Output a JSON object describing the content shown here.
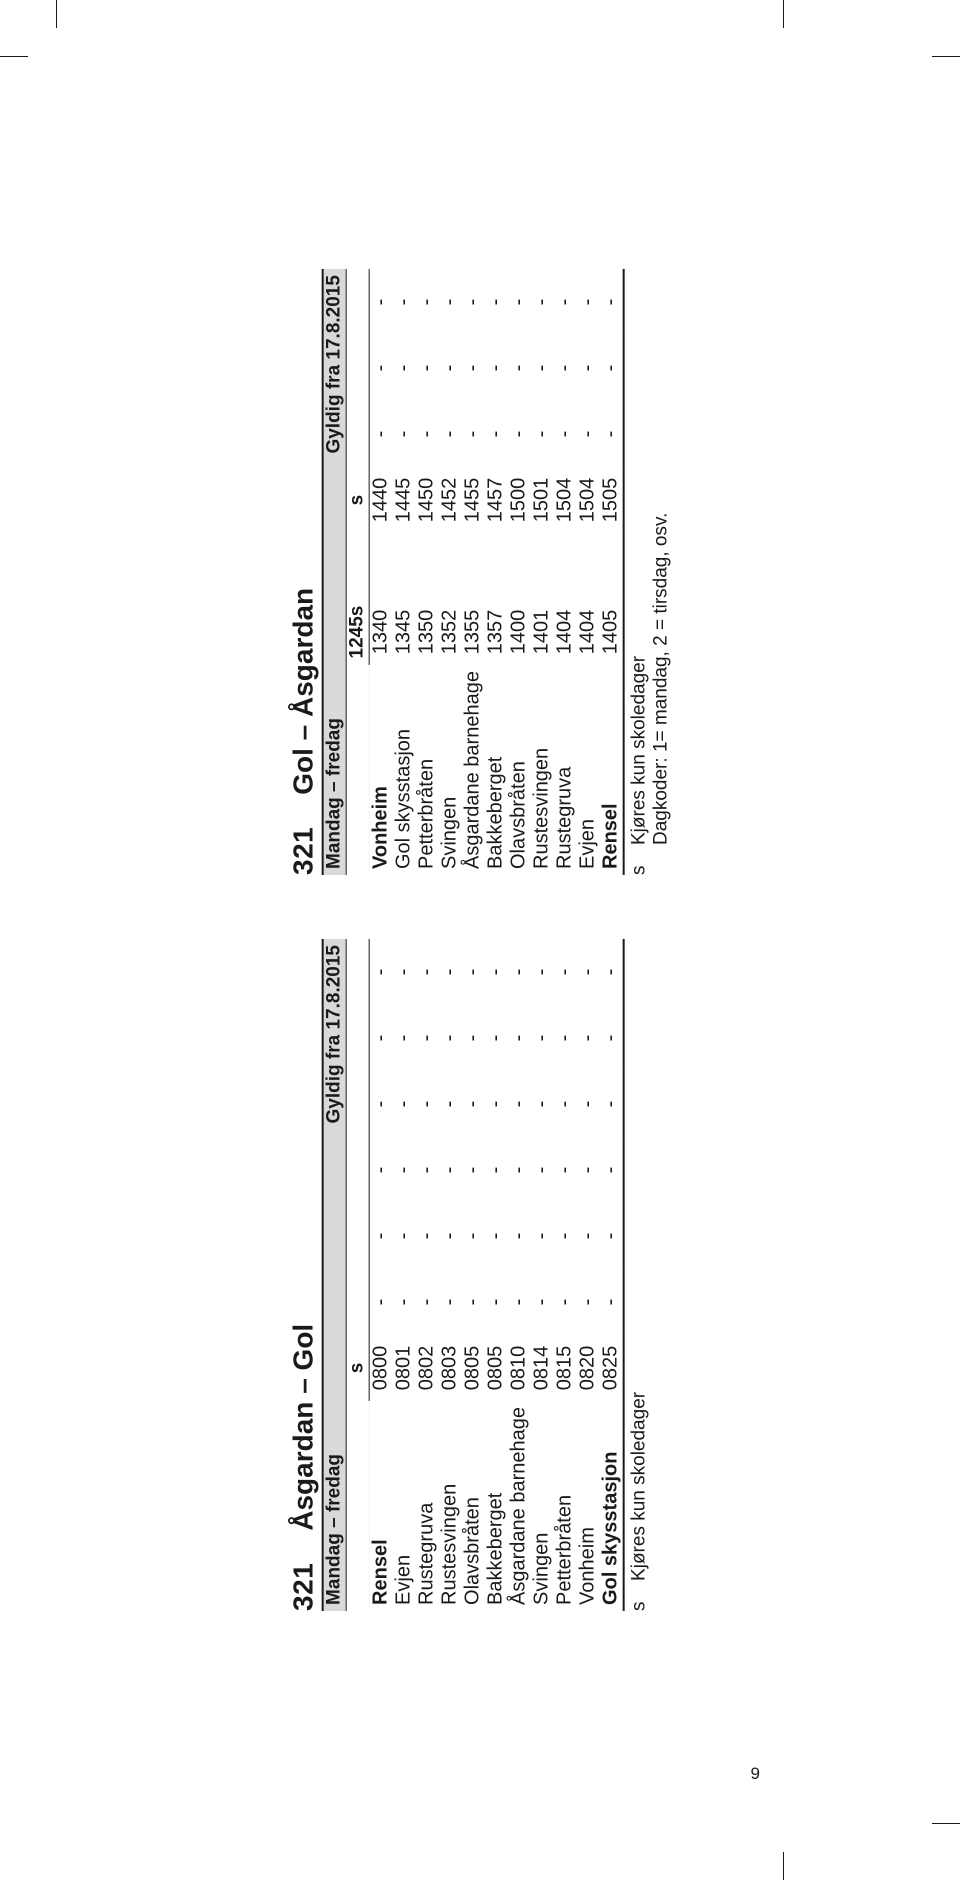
{
  "page_number": "9",
  "colors": {
    "bg": "#ffffff",
    "text": "#1a1a1a",
    "header_fill": "#d9d9d9"
  },
  "tables": [
    {
      "route_no": "321",
      "route_name": "Åsgardan – Gol",
      "days_label": "Mandag – fredag",
      "valid_label": "Gyldig fra 17.8.2015",
      "codes": [
        "s",
        "",
        "",
        "",
        "",
        "",
        ""
      ],
      "stops": [
        {
          "name": "Rensel",
          "times": [
            "0800",
            "-",
            "-",
            "-",
            "-",
            "-",
            "-"
          ],
          "bold": true
        },
        {
          "name": "Evjen",
          "times": [
            "0801",
            "-",
            "-",
            "-",
            "-",
            "-",
            "-"
          ]
        },
        {
          "name": "Rustegruva",
          "times": [
            "0802",
            "-",
            "-",
            "-",
            "-",
            "-",
            "-"
          ]
        },
        {
          "name": "Rustesvingen",
          "times": [
            "0803",
            "-",
            "-",
            "-",
            "-",
            "-",
            "-"
          ]
        },
        {
          "name": "Olavsbråten",
          "times": [
            "0805",
            "-",
            "-",
            "-",
            "-",
            "-",
            "-"
          ]
        },
        {
          "name": "Bakkeberget",
          "times": [
            "0805",
            "-",
            "-",
            "-",
            "-",
            "-",
            "-"
          ]
        },
        {
          "name": "Åsgardane barnehage",
          "times": [
            "0810",
            "-",
            "-",
            "-",
            "-",
            "-",
            "-"
          ]
        },
        {
          "name": "Svingen",
          "times": [
            "0814",
            "-",
            "-",
            "-",
            "-",
            "-",
            "-"
          ]
        },
        {
          "name": "Petterbråten",
          "times": [
            "0815",
            "-",
            "-",
            "-",
            "-",
            "-",
            "-"
          ]
        },
        {
          "name": "Vonheim",
          "times": [
            "0820",
            "-",
            "-",
            "-",
            "-",
            "-",
            "-"
          ]
        },
        {
          "name": "Gol skysstasjon",
          "times": [
            "0825",
            "-",
            "-",
            "-",
            "-",
            "-",
            "-"
          ],
          "bold": true,
          "last": true
        }
      ],
      "footnotes": [
        {
          "code": "s",
          "text": "Kjøres kun skoledager"
        }
      ]
    },
    {
      "route_no": "321",
      "route_name": "Gol – Åsgardan",
      "days_label": "Mandag – fredag",
      "valid_label": "Gyldig fra 17.8.2015",
      "codes": [
        "1245s",
        "",
        "s",
        "",
        "",
        ""
      ],
      "stops": [
        {
          "name": "Vonheim",
          "times": [
            "1340",
            "",
            "1440",
            "-",
            "-",
            "-"
          ],
          "bold": true
        },
        {
          "name": "Gol skysstasjon",
          "times": [
            "1345",
            "",
            "1445",
            "-",
            "-",
            "-"
          ]
        },
        {
          "name": "Petterbråten",
          "times": [
            "1350",
            "",
            "1450",
            "-",
            "-",
            "-"
          ]
        },
        {
          "name": "Svingen",
          "times": [
            "1352",
            "",
            "1452",
            "-",
            "-",
            "-"
          ]
        },
        {
          "name": "Åsgardane barnehage",
          "times": [
            "1355",
            "",
            "1455",
            "-",
            "-",
            "-"
          ]
        },
        {
          "name": "Bakkeberget",
          "times": [
            "1357",
            "",
            "1457",
            "-",
            "-",
            "-"
          ]
        },
        {
          "name": "Olavsbråten",
          "times": [
            "1400",
            "",
            "1500",
            "-",
            "-",
            "-"
          ]
        },
        {
          "name": "Rustesvingen",
          "times": [
            "1401",
            "",
            "1501",
            "-",
            "-",
            "-"
          ]
        },
        {
          "name": "Rustegruva",
          "times": [
            "1404",
            "",
            "1504",
            "-",
            "-",
            "-"
          ]
        },
        {
          "name": "Evjen",
          "times": [
            "1404",
            "",
            "1504",
            "-",
            "-",
            "-"
          ]
        },
        {
          "name": "Rensel",
          "times": [
            "1405",
            "",
            "1505",
            "-",
            "-",
            "-"
          ],
          "bold": true,
          "last": true
        }
      ],
      "footnotes": [
        {
          "code": "s",
          "text": "Kjøres kun skoledager"
        },
        {
          "code": "",
          "text": "Dagkoder: 1= mandag, 2 = tirsdag, osv."
        }
      ]
    }
  ]
}
